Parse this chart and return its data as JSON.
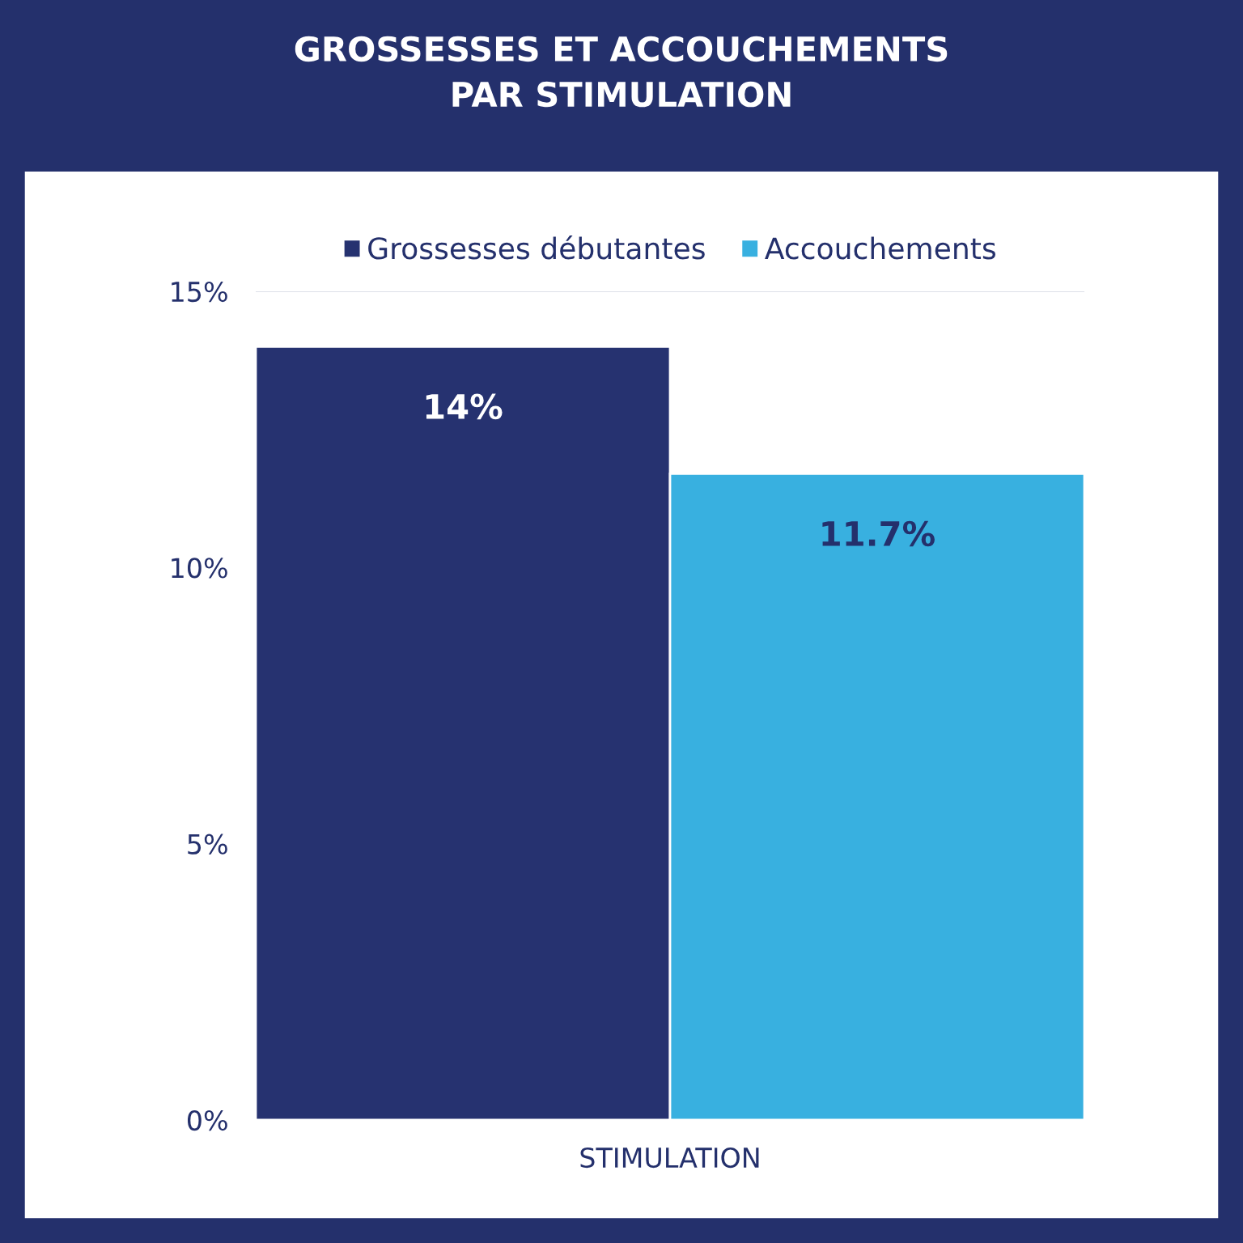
{
  "chart_data": {
    "type": "bar",
    "title": "GROSSESSES ET ACCOUCHEMENTS\nPAR STIMULATION",
    "categories": [
      "STIMULATION"
    ],
    "series": [
      {
        "name": "Grossesses débutantes",
        "color": "#263270",
        "values": [
          14
        ],
        "value_labels": [
          "14%"
        ]
      },
      {
        "name": "Accouchements",
        "color": "#38b0e0",
        "values": [
          11.7
        ],
        "value_labels": [
          "11.7%"
        ]
      }
    ],
    "ylim": [
      0,
      15
    ],
    "yticks": [
      {
        "value": 0,
        "label": "0%"
      },
      {
        "value": 5,
        "label": "5%"
      },
      {
        "value": 10,
        "label": "10%"
      },
      {
        "value": 15,
        "label": "15%"
      }
    ],
    "ref_lines": [
      {
        "axis": "y",
        "value": 15,
        "color": "#dde0e8"
      }
    ],
    "legend": "top"
  }
}
